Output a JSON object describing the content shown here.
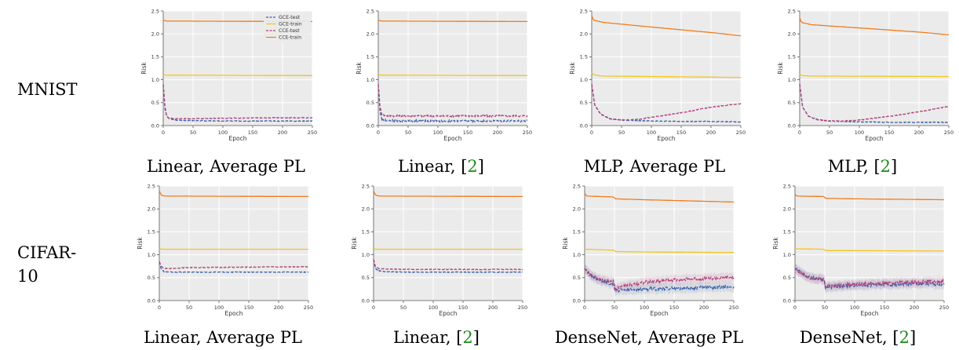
{
  "row_labels": [
    "MNIST",
    "CIFAR-",
    "10"
  ],
  "captions": [
    {
      "text": "Linear, Average PL",
      "cite": ""
    },
    {
      "text": "Linear, ",
      "cite": "2"
    },
    {
      "text": "MLP, Average PL",
      "cite": ""
    },
    {
      "text": "MLP, ",
      "cite": "2"
    },
    {
      "text": "Linear, Average PL",
      "cite": ""
    },
    {
      "text": "Linear, ",
      "cite": "2"
    },
    {
      "text": "DenseNet, Average PL",
      "cite": ""
    },
    {
      "text": "DenseNet, ",
      "cite": "2"
    }
  ],
  "colors": {
    "gce": "#3a5fa8",
    "cce_test": "#b0407a",
    "gce_train": "#f5c51c",
    "cce_train": "#f07c1c",
    "bg": "#ebebeb"
  },
  "legend": [
    "GCE-test",
    "GCE-train",
    "CCE-test",
    "CCE-train"
  ],
  "chart_data": [
    {
      "type": "line",
      "xlabel": "Epoch",
      "ylabel": "Risk",
      "xlim": [
        0,
        250
      ],
      "ylim": [
        0,
        2.5
      ],
      "grid": true,
      "legend": "top-right",
      "xticks": [
        "0",
        "50",
        "100",
        "150",
        "200",
        "250"
      ],
      "yticks": [
        "0.0",
        "0.5",
        "1.0",
        "1.5",
        "2.0",
        "2.5"
      ],
      "series": [
        {
          "name": "GCE-test",
          "x": [
            0,
            3,
            6,
            10,
            20,
            40,
            100,
            200,
            250
          ],
          "y": [
            0.9,
            0.35,
            0.2,
            0.15,
            0.12,
            0.11,
            0.1,
            0.1,
            0.1
          ]
        },
        {
          "name": "GCE-train",
          "x": [
            0,
            5,
            250
          ],
          "y": [
            1.12,
            1.1,
            1.09
          ]
        },
        {
          "name": "CCE-test",
          "x": [
            0,
            3,
            6,
            10,
            20,
            40,
            100,
            200,
            250
          ],
          "y": [
            0.9,
            0.4,
            0.2,
            0.16,
            0.15,
            0.15,
            0.16,
            0.17,
            0.17
          ]
        },
        {
          "name": "CCE-train",
          "x": [
            0,
            5,
            250
          ],
          "y": [
            2.3,
            2.28,
            2.27
          ]
        }
      ]
    },
    {
      "type": "line",
      "xlabel": "Epoch",
      "ylabel": "Risk",
      "xlim": [
        0,
        250
      ],
      "ylim": [
        0,
        2.5
      ],
      "grid": true,
      "xticks": [
        "0",
        "50",
        "100",
        "150",
        "200",
        "250"
      ],
      "yticks": [
        "0.0",
        "0.5",
        "1.0",
        "1.5",
        "2.0",
        "2.5"
      ],
      "series": [
        {
          "name": "GCE-test",
          "x": [
            0,
            3,
            6,
            10,
            20,
            40,
            100,
            200,
            250
          ],
          "y": [
            0.9,
            0.3,
            0.15,
            0.12,
            0.11,
            0.1,
            0.1,
            0.1,
            0.1
          ]
        },
        {
          "name": "GCE-train",
          "x": [
            0,
            5,
            250
          ],
          "y": [
            1.12,
            1.1,
            1.09
          ]
        },
        {
          "name": "CCE-test",
          "x": [
            0,
            3,
            6,
            10,
            20,
            40,
            100,
            200,
            250
          ],
          "y": [
            0.9,
            0.4,
            0.25,
            0.22,
            0.21,
            0.21,
            0.21,
            0.21,
            0.21
          ]
        },
        {
          "name": "CCE-train",
          "x": [
            0,
            5,
            250
          ],
          "y": [
            2.3,
            2.28,
            2.27
          ]
        }
      ]
    },
    {
      "type": "line",
      "xlabel": "Epoch",
      "ylabel": "Risk",
      "xlim": [
        0,
        250
      ],
      "ylim": [
        0,
        2.5
      ],
      "grid": true,
      "xticks": [
        "0",
        "50",
        "100",
        "150",
        "200",
        "250"
      ],
      "yticks": [
        "0.0",
        "0.5",
        "1.0",
        "1.5",
        "2.0",
        "2.5"
      ],
      "series": [
        {
          "name": "GCE-test",
          "x": [
            0,
            5,
            15,
            30,
            50,
            100,
            150,
            200,
            250
          ],
          "y": [
            0.9,
            0.45,
            0.25,
            0.15,
            0.12,
            0.1,
            0.09,
            0.09,
            0.08
          ]
        },
        {
          "name": "GCE-train",
          "x": [
            0,
            5,
            20,
            100,
            250
          ],
          "y": [
            1.15,
            1.1,
            1.08,
            1.07,
            1.05
          ]
        },
        {
          "name": "CCE-test",
          "x": [
            0,
            5,
            15,
            30,
            50,
            75,
            100,
            150,
            200,
            250
          ],
          "y": [
            0.9,
            0.45,
            0.25,
            0.15,
            0.12,
            0.13,
            0.18,
            0.28,
            0.4,
            0.48
          ]
        },
        {
          "name": "CCE-train",
          "x": [
            0,
            3,
            20,
            100,
            200,
            250
          ],
          "y": [
            2.4,
            2.3,
            2.25,
            2.15,
            2.03,
            1.96
          ]
        }
      ]
    },
    {
      "type": "line",
      "xlabel": "Epoch",
      "ylabel": "Risk",
      "xlim": [
        0,
        250
      ],
      "ylim": [
        0,
        2.5
      ],
      "grid": true,
      "xticks": [
        "0",
        "50",
        "100",
        "150",
        "200",
        "250"
      ],
      "yticks": [
        "0.0",
        "0.5",
        "1.0",
        "1.5",
        "2.0",
        "2.5"
      ],
      "series": [
        {
          "name": "GCE-test",
          "x": [
            0,
            5,
            15,
            30,
            50,
            100,
            150,
            200,
            250
          ],
          "y": [
            0.9,
            0.4,
            0.2,
            0.13,
            0.1,
            0.08,
            0.07,
            0.07,
            0.07
          ]
        },
        {
          "name": "GCE-train",
          "x": [
            0,
            5,
            20,
            250
          ],
          "y": [
            1.12,
            1.09,
            1.08,
            1.07
          ]
        },
        {
          "name": "CCE-test",
          "x": [
            0,
            5,
            15,
            30,
            50,
            75,
            100,
            150,
            200,
            250
          ],
          "y": [
            0.9,
            0.4,
            0.2,
            0.13,
            0.1,
            0.1,
            0.12,
            0.2,
            0.3,
            0.42
          ]
        },
        {
          "name": "CCE-train",
          "x": [
            0,
            3,
            20,
            100,
            200,
            250
          ],
          "y": [
            2.35,
            2.25,
            2.2,
            2.13,
            2.04,
            1.98
          ]
        }
      ]
    },
    {
      "type": "line",
      "xlabel": "Epoch",
      "ylabel": "Risk",
      "xlim": [
        0,
        250
      ],
      "ylim": [
        0,
        2.5
      ],
      "grid": true,
      "xticks": [
        "0",
        "50",
        "100",
        "150",
        "200",
        "250"
      ],
      "yticks": [
        "0.0",
        "0.5",
        "1.0",
        "1.5",
        "2.0",
        "2.5"
      ],
      "series": [
        {
          "name": "GCE-test",
          "x": [
            0,
            3,
            8,
            20,
            50,
            250
          ],
          "y": [
            0.85,
            0.7,
            0.63,
            0.62,
            0.62,
            0.62
          ]
        },
        {
          "name": "GCE-train",
          "x": [
            0,
            5,
            250
          ],
          "y": [
            1.13,
            1.12,
            1.12
          ]
        },
        {
          "name": "CCE-test",
          "x": [
            0,
            3,
            8,
            20,
            50,
            150,
            250
          ],
          "y": [
            0.85,
            0.75,
            0.7,
            0.7,
            0.72,
            0.73,
            0.74
          ]
        },
        {
          "name": "CCE-train",
          "x": [
            0,
            3,
            10,
            250
          ],
          "y": [
            2.4,
            2.3,
            2.28,
            2.27
          ]
        }
      ]
    },
    {
      "type": "line",
      "xlabel": "Epoch",
      "ylabel": "Risk",
      "xlim": [
        0,
        250
      ],
      "ylim": [
        0,
        2.5
      ],
      "grid": true,
      "xticks": [
        "0",
        "50",
        "100",
        "150",
        "200",
        "250"
      ],
      "yticks": [
        "0.0",
        "0.5",
        "1.0",
        "1.5",
        "2.0",
        "2.5"
      ],
      "series": [
        {
          "name": "GCE-test",
          "x": [
            0,
            3,
            8,
            20,
            50,
            250
          ],
          "y": [
            0.9,
            0.7,
            0.65,
            0.63,
            0.62,
            0.62
          ]
        },
        {
          "name": "GCE-train",
          "x": [
            0,
            5,
            250
          ],
          "y": [
            1.13,
            1.12,
            1.12
          ]
        },
        {
          "name": "CCE-test",
          "x": [
            0,
            3,
            8,
            20,
            50,
            150,
            250
          ],
          "y": [
            0.9,
            0.75,
            0.7,
            0.69,
            0.68,
            0.68,
            0.68
          ]
        },
        {
          "name": "CCE-train",
          "x": [
            0,
            3,
            10,
            250
          ],
          "y": [
            2.4,
            2.3,
            2.28,
            2.27
          ]
        }
      ]
    },
    {
      "type": "line",
      "xlabel": "Epoch",
      "ylabel": "Risk",
      "xlim": [
        0,
        250
      ],
      "ylim": [
        0,
        2.5
      ],
      "grid": true,
      "xticks": [
        "0",
        "50",
        "100",
        "150",
        "200",
        "250"
      ],
      "yticks": [
        "0.0",
        "0.5",
        "1.0",
        "1.5",
        "2.0",
        "2.5"
      ],
      "series": [
        {
          "name": "GCE-test",
          "x": [
            0,
            10,
            25,
            49,
            51,
            60,
            100,
            150,
            200,
            250
          ],
          "y": [
            0.7,
            0.55,
            0.45,
            0.35,
            0.22,
            0.23,
            0.25,
            0.27,
            0.28,
            0.3
          ]
        },
        {
          "name": "GCE-train",
          "x": [
            0,
            49,
            51,
            100,
            250
          ],
          "y": [
            1.12,
            1.1,
            1.07,
            1.06,
            1.05
          ]
        },
        {
          "name": "CCE-test",
          "x": [
            0,
            10,
            25,
            49,
            51,
            60,
            100,
            150,
            200,
            250
          ],
          "y": [
            0.7,
            0.55,
            0.45,
            0.4,
            0.25,
            0.3,
            0.4,
            0.45,
            0.48,
            0.5
          ]
        },
        {
          "name": "CCE-train",
          "x": [
            0,
            3,
            49,
            51,
            100,
            250
          ],
          "y": [
            2.35,
            2.28,
            2.26,
            2.22,
            2.2,
            2.15
          ]
        }
      ]
    },
    {
      "type": "line",
      "xlabel": "Epoch",
      "ylabel": "Risk",
      "xlim": [
        0,
        250
      ],
      "ylim": [
        0,
        2.5
      ],
      "grid": true,
      "xticks": [
        "0",
        "50",
        "100",
        "150",
        "200",
        "250"
      ],
      "yticks": [
        "0.0",
        "0.5",
        "1.0",
        "1.5",
        "2.0",
        "2.5"
      ],
      "series": [
        {
          "name": "GCE-test",
          "x": [
            0,
            10,
            25,
            49,
            51,
            60,
            100,
            150,
            200,
            250
          ],
          "y": [
            0.7,
            0.6,
            0.5,
            0.45,
            0.28,
            0.3,
            0.33,
            0.35,
            0.36,
            0.36
          ]
        },
        {
          "name": "GCE-train",
          "x": [
            0,
            49,
            51,
            100,
            250
          ],
          "y": [
            1.13,
            1.12,
            1.09,
            1.09,
            1.08
          ]
        },
        {
          "name": "CCE-test",
          "x": [
            0,
            10,
            25,
            49,
            51,
            60,
            100,
            150,
            200,
            250
          ],
          "y": [
            0.7,
            0.6,
            0.5,
            0.46,
            0.3,
            0.33,
            0.36,
            0.38,
            0.4,
            0.42
          ]
        },
        {
          "name": "CCE-train",
          "x": [
            0,
            3,
            49,
            51,
            100,
            250
          ],
          "y": [
            2.32,
            2.28,
            2.27,
            2.23,
            2.22,
            2.2
          ]
        }
      ]
    }
  ]
}
